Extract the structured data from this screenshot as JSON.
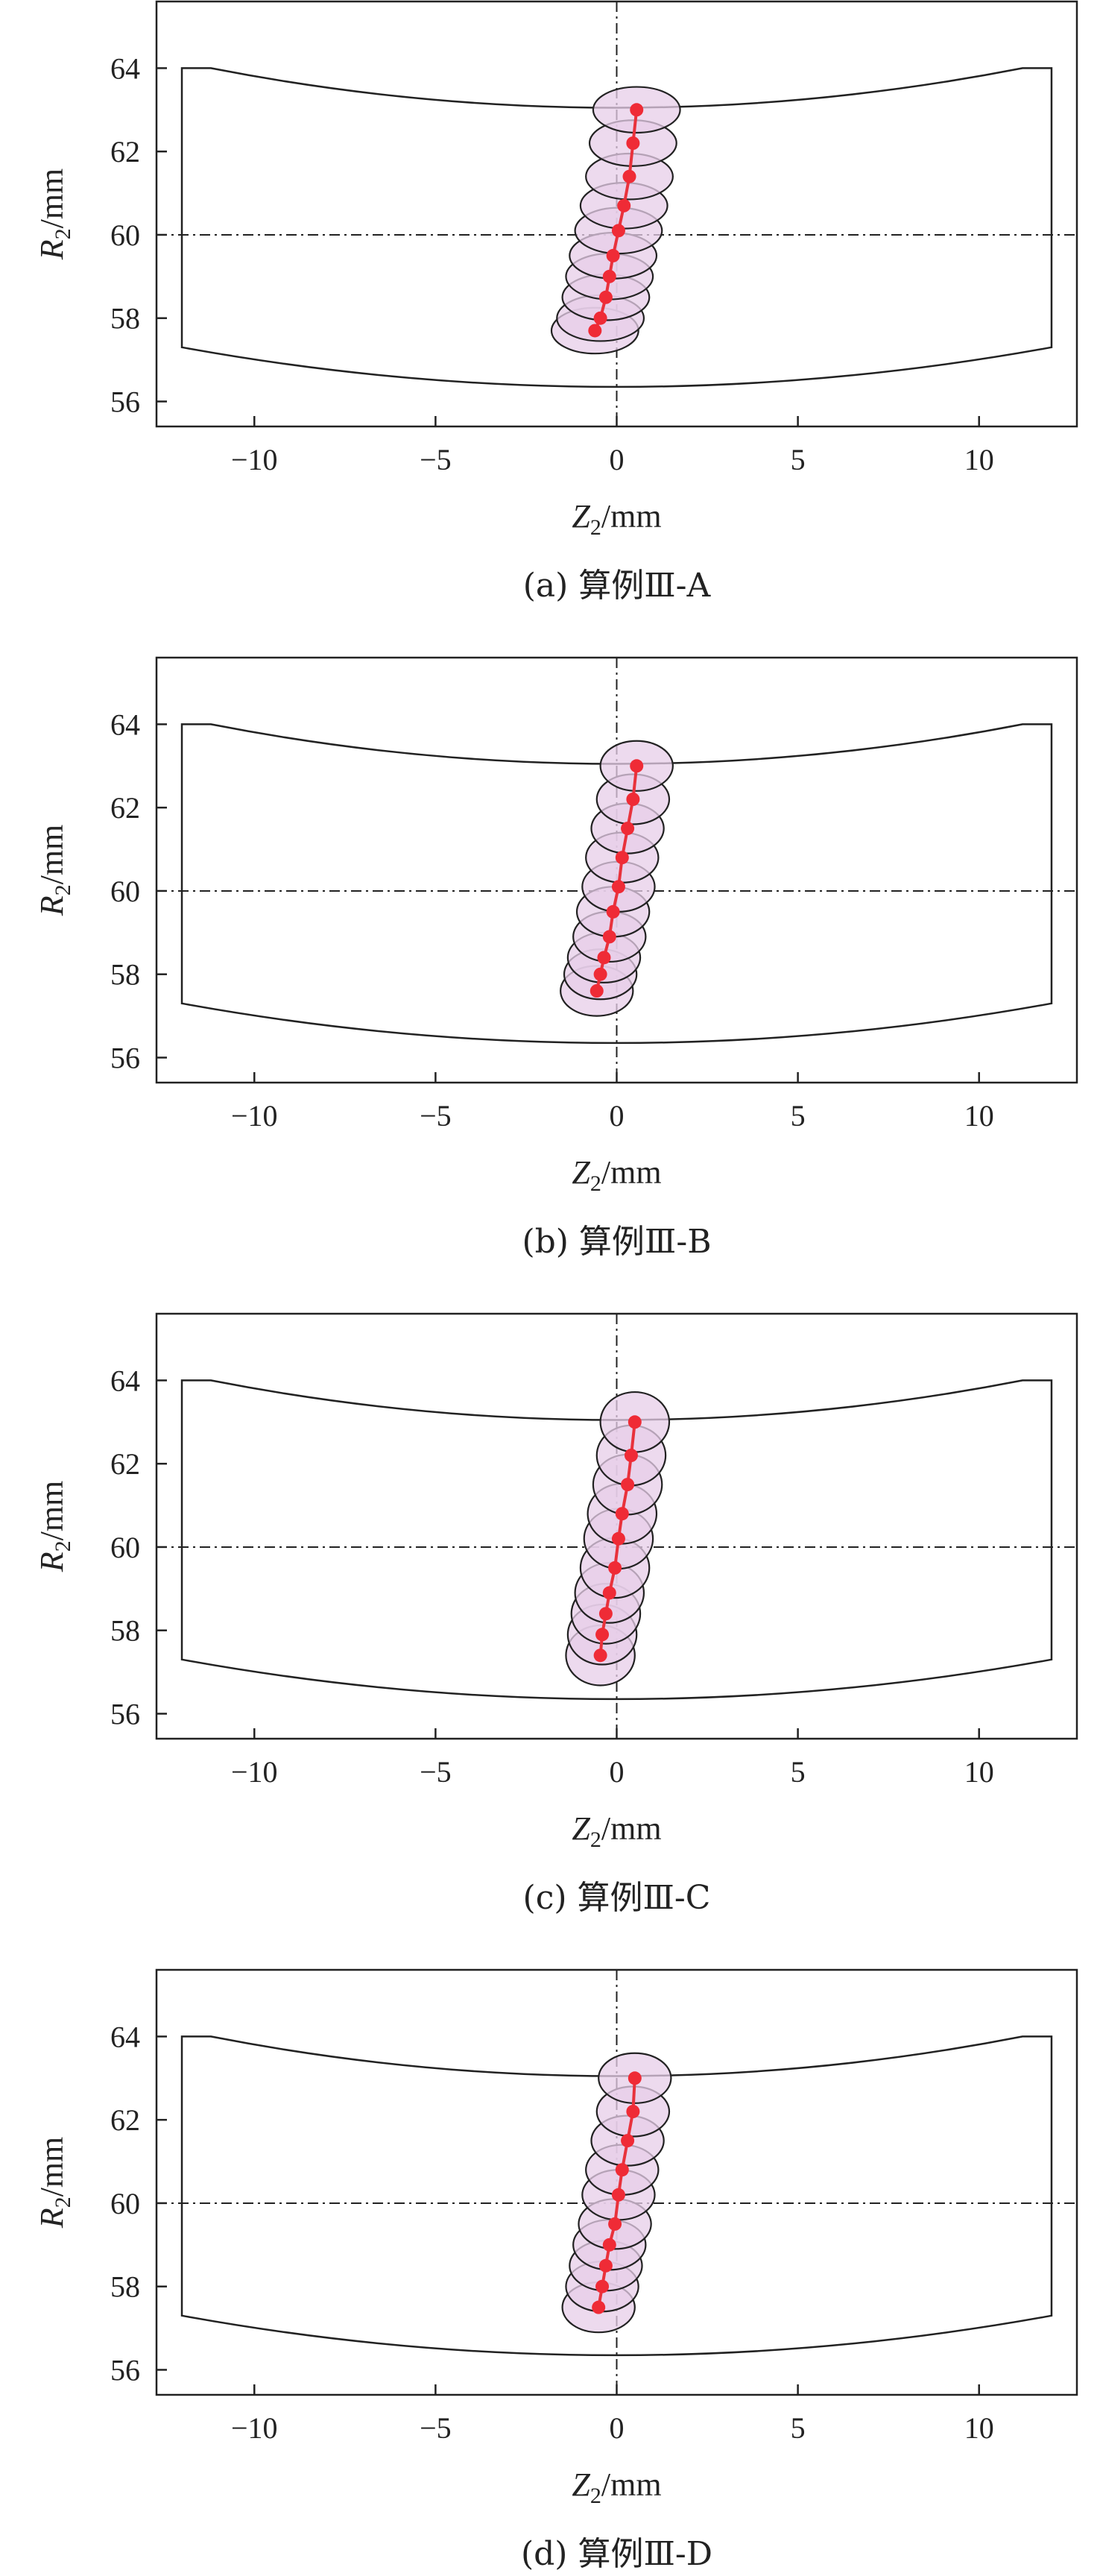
{
  "chart_data": [
    {
      "type": "scatter",
      "caption": "(a) 算例Ⅲ-A",
      "xlabel": {
        "main": "Z",
        "sub": "2",
        "unit": "/mm"
      },
      "ylabel": {
        "main": "R",
        "sub": "2",
        "unit": "/mm"
      },
      "xlim": [
        -12.7,
        12.7
      ],
      "ylim": [
        55.4,
        65.6
      ],
      "x_ticks": [
        -10,
        -5,
        0,
        5,
        10
      ],
      "x_tick_labels": [
        "−10",
        "−5",
        "0",
        "5",
        "10"
      ],
      "y_ticks": [
        56,
        58,
        60,
        62,
        64
      ],
      "y_tick_labels": [
        "56",
        "58",
        "60",
        "62",
        "64"
      ],
      "reference_lines": {
        "x": 0,
        "y": 60,
        "style": "dash-dot"
      },
      "ellipse_radii": {
        "rx": 1.2,
        "ry": 0.55
      },
      "points": {
        "x": [
          0.55,
          0.45,
          0.35,
          0.2,
          0.05,
          -0.1,
          -0.2,
          -0.3,
          -0.45,
          -0.6
        ],
        "y": [
          63.0,
          62.2,
          61.4,
          60.7,
          60.1,
          59.5,
          59.0,
          58.5,
          58.0,
          57.7
        ]
      }
    },
    {
      "type": "scatter",
      "caption": "(b) 算例Ⅲ-B",
      "xlabel": {
        "main": "Z",
        "sub": "2",
        "unit": "/mm"
      },
      "ylabel": {
        "main": "R",
        "sub": "2",
        "unit": "/mm"
      },
      "xlim": [
        -12.7,
        12.7
      ],
      "ylim": [
        55.4,
        65.6
      ],
      "x_ticks": [
        -10,
        -5,
        0,
        5,
        10
      ],
      "x_tick_labels": [
        "−10",
        "−5",
        "0",
        "5",
        "10"
      ],
      "y_ticks": [
        56,
        58,
        60,
        62,
        64
      ],
      "y_tick_labels": [
        "56",
        "58",
        "60",
        "62",
        "64"
      ],
      "reference_lines": {
        "x": 0,
        "y": 60,
        "style": "dash-dot"
      },
      "ellipse_radii": {
        "rx": 1.0,
        "ry": 0.6
      },
      "points": {
        "x": [
          0.55,
          0.45,
          0.3,
          0.15,
          0.05,
          -0.1,
          -0.2,
          -0.35,
          -0.45,
          -0.55
        ],
        "y": [
          63.0,
          62.2,
          61.5,
          60.8,
          60.1,
          59.5,
          58.9,
          58.4,
          58.0,
          57.6
        ]
      }
    },
    {
      "type": "scatter",
      "caption": "(c) 算例Ⅲ-C",
      "xlabel": {
        "main": "Z",
        "sub": "2",
        "unit": "/mm"
      },
      "ylabel": {
        "main": "R",
        "sub": "2",
        "unit": "/mm"
      },
      "xlim": [
        -12.7,
        12.7
      ],
      "ylim": [
        55.4,
        65.6
      ],
      "x_ticks": [
        -10,
        -5,
        0,
        5,
        10
      ],
      "x_tick_labels": [
        "−10",
        "−5",
        "0",
        "5",
        "10"
      ],
      "y_ticks": [
        56,
        58,
        60,
        62,
        64
      ],
      "y_tick_labels": [
        "56",
        "58",
        "60",
        "62",
        "64"
      ],
      "reference_lines": {
        "x": 0,
        "y": 60,
        "style": "dash-dot"
      },
      "ellipse_radii": {
        "rx": 0.95,
        "ry": 0.72
      },
      "points": {
        "x": [
          0.5,
          0.4,
          0.3,
          0.15,
          0.05,
          -0.05,
          -0.2,
          -0.3,
          -0.4,
          -0.45
        ],
        "y": [
          63.0,
          62.2,
          61.5,
          60.8,
          60.2,
          59.5,
          58.9,
          58.4,
          57.9,
          57.4
        ]
      }
    },
    {
      "type": "scatter",
      "caption": "(d) 算例Ⅲ-D",
      "xlabel": {
        "main": "Z",
        "sub": "2",
        "unit": "/mm"
      },
      "ylabel": {
        "main": "R",
        "sub": "2",
        "unit": "/mm"
      },
      "xlim": [
        -12.7,
        12.7
      ],
      "ylim": [
        55.4,
        65.6
      ],
      "x_ticks": [
        -10,
        -5,
        0,
        5,
        10
      ],
      "x_tick_labels": [
        "−10",
        "−5",
        "0",
        "5",
        "10"
      ],
      "y_ticks": [
        56,
        58,
        60,
        62,
        64
      ],
      "y_tick_labels": [
        "56",
        "58",
        "60",
        "62",
        "64"
      ],
      "reference_lines": {
        "x": 0,
        "y": 60,
        "style": "dash-dot"
      },
      "ellipse_radii": {
        "rx": 1.0,
        "ry": 0.6
      },
      "points": {
        "x": [
          0.5,
          0.45,
          0.3,
          0.15,
          0.05,
          -0.05,
          -0.2,
          -0.3,
          -0.4,
          -0.5
        ],
        "y": [
          63.0,
          62.2,
          61.5,
          60.8,
          60.2,
          59.5,
          59.0,
          58.5,
          58.0,
          57.5
        ]
      }
    }
  ]
}
